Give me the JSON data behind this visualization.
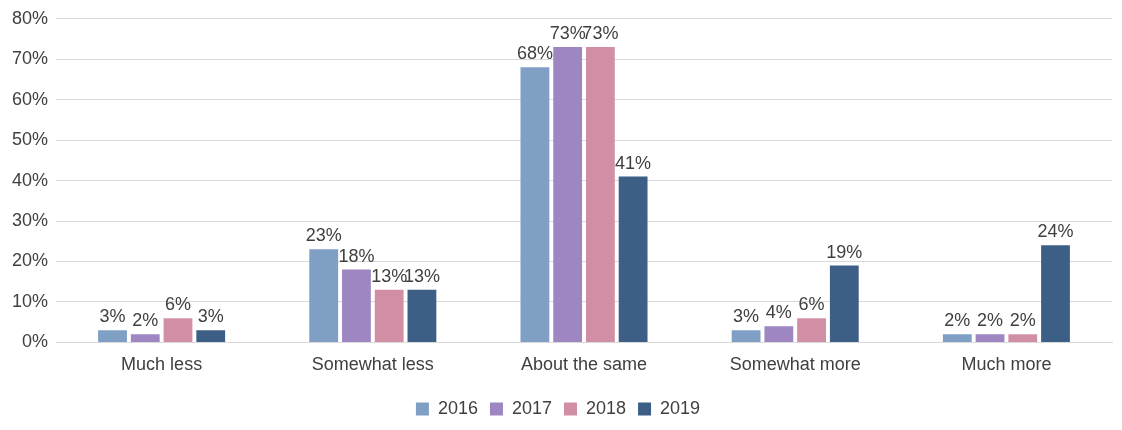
{
  "chart_data": {
    "type": "bar",
    "categories": [
      "Much less",
      "Somewhat less",
      "About the same",
      "Somewhat more",
      "Much more"
    ],
    "series": [
      {
        "name": "2016",
        "color": "#7f9fc4",
        "values": [
          3,
          23,
          68,
          3,
          2
        ],
        "value_labels": [
          "3%",
          "23%",
          "68%",
          "3%",
          "2%"
        ]
      },
      {
        "name": "2017",
        "color": "#9e86c2",
        "values": [
          2,
          18,
          73,
          4,
          2
        ],
        "value_labels": [
          "2%",
          "18%",
          "73%",
          "4%",
          "2%"
        ]
      },
      {
        "name": "2018",
        "color": "#d18fa6",
        "values": [
          6,
          13,
          73,
          6,
          2
        ],
        "value_labels": [
          "6%",
          "13%",
          "73%",
          "6%",
          "2%"
        ]
      },
      {
        "name": "2019",
        "color": "#3d5f85",
        "values": [
          3,
          13,
          41,
          19,
          24
        ],
        "value_labels": [
          "3%",
          "13%",
          "41%",
          "19%",
          "24%"
        ]
      }
    ],
    "ylim": [
      0,
      80
    ],
    "yticks": [
      {
        "value": 0,
        "label": "0%"
      },
      {
        "value": 10,
        "label": "10%"
      },
      {
        "value": 20,
        "label": "20%"
      },
      {
        "value": 30,
        "label": "30%"
      },
      {
        "value": 40,
        "label": "40%"
      },
      {
        "value": 50,
        "label": "50%"
      },
      {
        "value": 60,
        "label": "60%"
      },
      {
        "value": 70,
        "label": "70%"
      },
      {
        "value": 80,
        "label": "80%"
      }
    ],
    "grid": "y",
    "legend": "bottom"
  }
}
